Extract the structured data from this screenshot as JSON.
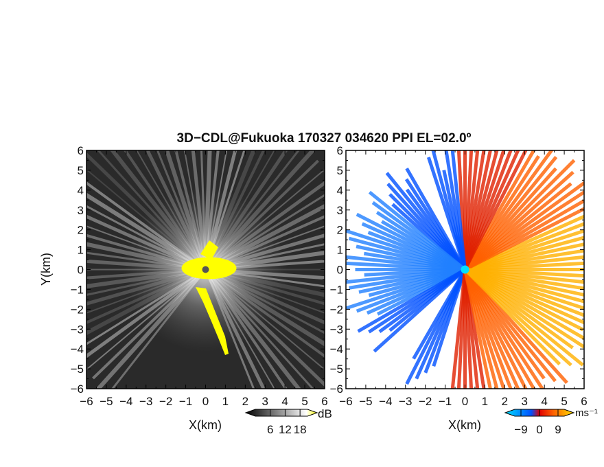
{
  "figure": {
    "title": "3D−CDL@Fukuoka 170327 034620 PPI EL=02.0º"
  },
  "chart_data": [
    {
      "type": "heatmap",
      "panel": "left",
      "xlabel": "X(km)",
      "ylabel": "Y(km)",
      "xlim": [
        -6,
        6
      ],
      "ylim": [
        -6,
        6
      ],
      "x_ticks": [
        "−6",
        "−5",
        "−4",
        "−3",
        "−2",
        "−1",
        "0",
        "1",
        "2",
        "3",
        "4",
        "5",
        "6"
      ],
      "y_ticks": [
        "6",
        "5",
        "4",
        "3",
        "2",
        "1",
        "0",
        "−1",
        "−2",
        "−3",
        "−4",
        "−5",
        "−6"
      ],
      "radar_location": [
        0,
        0
      ],
      "colorbar": {
        "unit": "dB",
        "tick_labels": [
          "6",
          "12",
          "18"
        ],
        "ticks": [
          6,
          12,
          18
        ],
        "range": [
          0,
          21
        ],
        "colors": [
          "#000000",
          "#ffffff",
          "#ffff00"
        ]
      },
      "saturated_region_color": "#ffff00",
      "background_color": "#2a2a2a"
    },
    {
      "type": "heatmap",
      "panel": "right",
      "xlabel": "X(km)",
      "xlim": [
        -6,
        6
      ],
      "ylim": [
        -6,
        6
      ],
      "x_ticks": [
        "−6",
        "−5",
        "−4",
        "−3",
        "−2",
        "−1",
        "0",
        "1",
        "2",
        "3",
        "4",
        "5",
        "6"
      ],
      "y_ticks": [
        "6",
        "5",
        "4",
        "3",
        "2",
        "1",
        "0",
        "−1",
        "−2",
        "−3",
        "−4",
        "−5",
        "−6"
      ],
      "radar_location": [
        0,
        0
      ],
      "colorbar": {
        "unit": "ms⁻¹",
        "tick_labels": [
          "−9",
          "0",
          "9"
        ],
        "ticks": [
          -9,
          0,
          9
        ],
        "range": [
          -12,
          12
        ],
        "colors": [
          "#00e0ff",
          "#0050ff",
          "#e00000",
          "#ff6000",
          "#ffe000"
        ]
      },
      "marker_color": "#00e0ff",
      "background_color": "#ffffff"
    }
  ]
}
